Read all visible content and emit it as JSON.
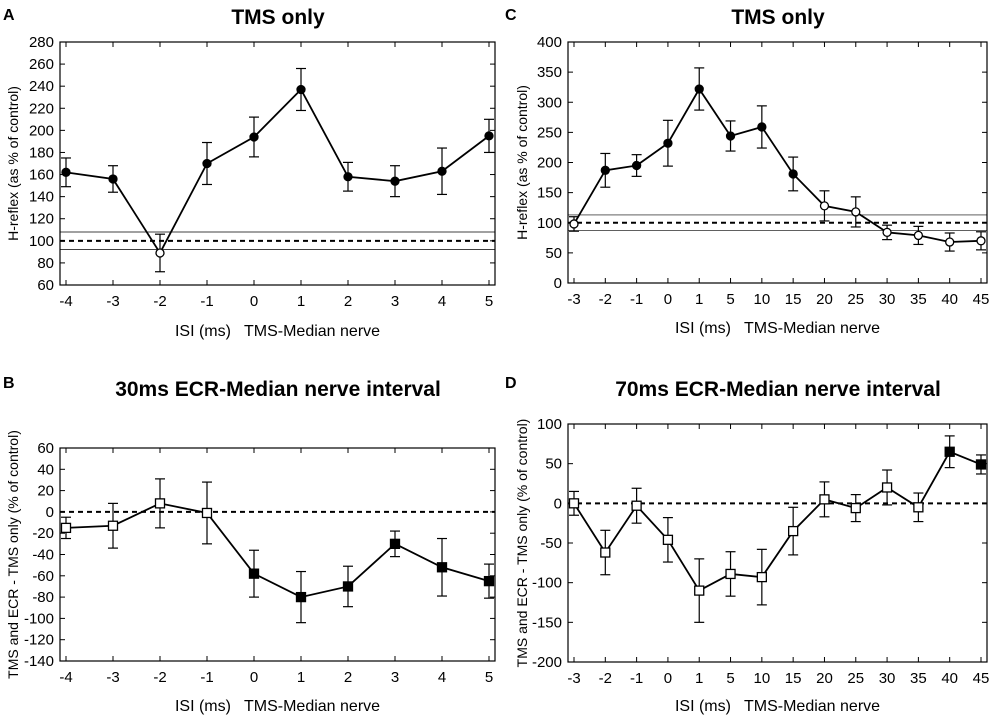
{
  "chart_data": [
    {
      "panel": "A",
      "type": "line",
      "title": "TMS only",
      "xlabel": "ISI (ms)   TMS-Median nerve",
      "ylabel": "H-reflex (as % of control)",
      "categories": [
        "-4",
        "-3",
        "-2",
        "-1",
        "0",
        "1",
        "2",
        "3",
        "4",
        "5"
      ],
      "ylim": [
        60,
        280
      ],
      "yticks": [
        60,
        80,
        100,
        120,
        140,
        160,
        180,
        200,
        220,
        240,
        260,
        280
      ],
      "series": [
        {
          "name": "TMS only",
          "values": [
            162,
            156,
            89,
            170,
            194,
            237,
            158,
            154,
            163,
            195
          ],
          "errors": [
            13,
            12,
            17,
            19,
            18,
            19,
            13,
            14,
            21,
            15
          ],
          "filled": [
            true,
            true,
            false,
            true,
            true,
            true,
            true,
            true,
            true,
            true
          ],
          "marker": "circle"
        }
      ],
      "reference_lines": [
        {
          "value": 100,
          "style": "dashed"
        },
        {
          "value": 108,
          "style": "thin"
        },
        {
          "value": 92,
          "style": "thin"
        }
      ]
    },
    {
      "panel": "B",
      "type": "line",
      "title": "30ms ECR-Median nerve interval",
      "xlabel": "ISI (ms)   TMS-Median nerve",
      "ylabel": "TMS and ECR - TMS only (% of control)",
      "categories": [
        "-4",
        "-3",
        "-2",
        "-1",
        "0",
        "1",
        "2",
        "3",
        "4",
        "5"
      ],
      "ylim": [
        -140,
        60
      ],
      "yticks": [
        -140,
        -120,
        -100,
        -80,
        -60,
        -40,
        -20,
        0,
        20,
        40,
        60
      ],
      "series": [
        {
          "name": "TMS and ECR - TMS only",
          "values": [
            -15,
            -13,
            8,
            -1,
            -58,
            -80,
            -70,
            -30,
            -52,
            -65
          ],
          "errors": [
            10,
            21,
            23,
            29,
            22,
            24,
            19,
            12,
            27,
            16
          ],
          "filled": [
            false,
            false,
            false,
            false,
            true,
            true,
            true,
            true,
            true,
            true
          ],
          "marker": "square"
        }
      ],
      "reference_lines": [
        {
          "value": 0,
          "style": "dashed"
        }
      ]
    },
    {
      "panel": "C",
      "type": "line",
      "title": "TMS only",
      "xlabel": "ISI (ms)   TMS-Median nerve",
      "ylabel": "H-reflex (as % of control)",
      "categories": [
        "-3",
        "-2",
        "-1",
        "0",
        "1",
        "5",
        "10",
        "15",
        "20",
        "25",
        "30",
        "35",
        "40",
        "45"
      ],
      "ylim": [
        0,
        400
      ],
      "yticks": [
        0,
        50,
        100,
        150,
        200,
        250,
        300,
        350,
        400
      ],
      "series": [
        {
          "name": "TMS only",
          "values": [
            98,
            187,
            195,
            232,
            322,
            244,
            259,
            181,
            128,
            118,
            84,
            79,
            68,
            70
          ],
          "errors": [
            12,
            28,
            18,
            38,
            35,
            25,
            35,
            28,
            25,
            25,
            12,
            15,
            15,
            15
          ],
          "filled": [
            false,
            true,
            true,
            true,
            true,
            true,
            true,
            true,
            false,
            false,
            false,
            false,
            false,
            false
          ],
          "marker": "circle"
        }
      ],
      "reference_lines": [
        {
          "value": 100,
          "style": "dashed"
        },
        {
          "value": 113,
          "style": "thin"
        },
        {
          "value": 87,
          "style": "thin"
        }
      ]
    },
    {
      "panel": "D",
      "type": "line",
      "title": "70ms ECR-Median nerve interval",
      "xlabel": "ISI (ms)   TMS-Median nerve",
      "ylabel": "TMS and ECR - TMS only (% of control)",
      "categories": [
        "-3",
        "-2",
        "-1",
        "0",
        "1",
        "5",
        "10",
        "15",
        "20",
        "25",
        "30",
        "35",
        "40",
        "45"
      ],
      "ylim": [
        -200,
        100
      ],
      "yticks": [
        -200,
        -150,
        -100,
        -50,
        0,
        50,
        100
      ],
      "series": [
        {
          "name": "TMS and ECR - TMS only",
          "values": [
            0,
            -62,
            -3,
            -46,
            -110,
            -89,
            -93,
            -35,
            5,
            -6,
            20,
            -5,
            65,
            49
          ],
          "errors": [
            15,
            28,
            22,
            28,
            40,
            28,
            35,
            30,
            22,
            17,
            22,
            18,
            20,
            12
          ],
          "filled": [
            false,
            false,
            false,
            false,
            false,
            false,
            false,
            false,
            false,
            false,
            false,
            false,
            true,
            true
          ],
          "marker": "square"
        }
      ],
      "reference_lines": [
        {
          "value": 0,
          "style": "dashed"
        }
      ]
    }
  ]
}
